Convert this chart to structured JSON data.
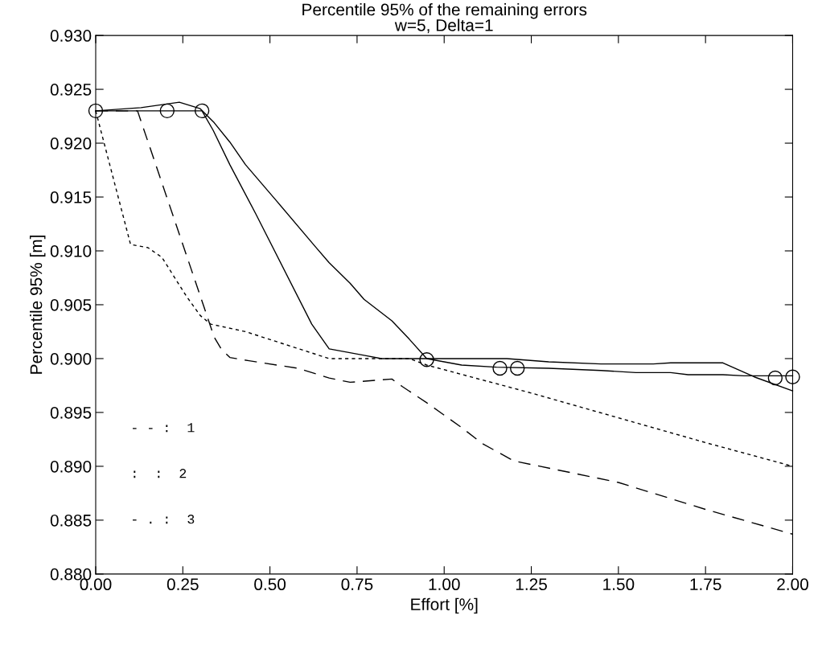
{
  "chart_data": {
    "type": "line",
    "title": "Percentile 95% of the remaining errors",
    "subtitle": "w=5, Delta=1",
    "xlabel": "Effort [%]",
    "ylabel": "Percentile 95% [m]",
    "xlim": [
      0,
      2
    ],
    "ylim": [
      0.88,
      0.93
    ],
    "xticks": [
      {
        "value": 0,
        "label": "0.00"
      },
      {
        "value": 0.25,
        "label": "0.25"
      },
      {
        "value": 0.5,
        "label": "0.50"
      },
      {
        "value": 0.75,
        "label": "0.75"
      },
      {
        "value": 1,
        "label": "1.00"
      },
      {
        "value": 1.25,
        "label": "1.25"
      },
      {
        "value": 1.5,
        "label": "1.50"
      },
      {
        "value": 1.75,
        "label": "1.75"
      },
      {
        "value": 2,
        "label": "2.00"
      }
    ],
    "yticks": [
      {
        "value": 0.88,
        "label": "0.880"
      },
      {
        "value": 0.885,
        "label": "0.885"
      },
      {
        "value": 0.89,
        "label": "0.890"
      },
      {
        "value": 0.895,
        "label": "0.895"
      },
      {
        "value": 0.9,
        "label": "0.900"
      },
      {
        "value": 0.905,
        "label": "0.905"
      },
      {
        "value": 0.91,
        "label": "0.910"
      },
      {
        "value": 0.915,
        "label": "0.915"
      },
      {
        "value": 0.92,
        "label": "0.920"
      },
      {
        "value": 0.925,
        "label": "0.925"
      },
      {
        "value": 0.93,
        "label": "0.930"
      }
    ],
    "grid": false,
    "annotations": [
      "- - :  1",
      ":  :  2",
      "- . :  3"
    ],
    "series": [
      {
        "color": "#000000",
        "line_style": "dotted",
        "x": [
          0,
          0.1,
          0.15,
          0.19,
          0.26,
          0.3,
          0.33,
          0.43,
          0.67,
          0.82,
          0.9,
          0.95,
          1.25,
          1.5,
          1.75,
          2.0
        ],
        "values": [
          0.923,
          0.9106,
          0.9103,
          0.9094,
          0.9058,
          0.904,
          0.9032,
          0.9025,
          0.9,
          0.9,
          0.9,
          0.8994,
          0.8968,
          0.8945,
          0.8922,
          0.89
        ]
      },
      {
        "color": "#000000",
        "line_style": "dashed",
        "x": [
          0,
          0.12,
          0.34,
          0.36,
          0.385,
          0.44,
          0.58,
          0.67,
          0.73,
          0.81,
          0.85,
          0.88,
          0.95,
          1.05,
          1.11,
          1.2,
          1.5,
          1.75,
          2.0
        ],
        "values": [
          0.923,
          0.923,
          0.902,
          0.9009,
          0.9001,
          0.8998,
          0.8991,
          0.8982,
          0.8978,
          0.898,
          0.8981,
          0.8974,
          0.8959,
          0.8936,
          0.8921,
          0.8905,
          0.8885,
          0.886,
          0.8837
        ]
      },
      {
        "color": "#000000",
        "line_style": "solid",
        "x": [
          0,
          0.305,
          0.337,
          0.385,
          0.46,
          0.62,
          0.67,
          0.77,
          0.82,
          0.95,
          1.18,
          1.3,
          1.45,
          1.6,
          1.65,
          1.8,
          1.89,
          2.0
        ],
        "values": [
          0.923,
          0.923,
          0.9212,
          0.918,
          0.9134,
          0.9032,
          0.9009,
          0.9003,
          0.9,
          0.9,
          0.9,
          0.8997,
          0.8995,
          0.8995,
          0.8996,
          0.8996,
          0.8983,
          0.897
        ]
      },
      {
        "color": "#000000",
        "line_style": "solid",
        "x": [
          0,
          0.13,
          0.24,
          0.3,
          0.34,
          0.385,
          0.43,
          0.52,
          0.63,
          0.67,
          0.73,
          0.77,
          0.85,
          0.9,
          0.95,
          1.0,
          1.05,
          1.15,
          1.3,
          1.45,
          1.55,
          1.65,
          1.7,
          1.8,
          1.86,
          2.0
        ],
        "values": [
          0.923,
          0.9233,
          0.9238,
          0.9232,
          0.9219,
          0.9201,
          0.918,
          0.9146,
          0.9104,
          0.9089,
          0.907,
          0.9055,
          0.9035,
          0.9018,
          0.9,
          0.8997,
          0.8994,
          0.8992,
          0.8991,
          0.8989,
          0.8987,
          0.8987,
          0.8985,
          0.8985,
          0.8984,
          0.8984
        ]
      },
      {
        "type": "scatter",
        "color": "#000000",
        "marker": "circle",
        "x": [
          0,
          0.205,
          0.305,
          0.95,
          1.16,
          1.21,
          1.95,
          2.0
        ],
        "values": [
          0.923,
          0.923,
          0.923,
          0.8999,
          0.8991,
          0.8991,
          0.8982,
          0.8983
        ]
      }
    ]
  }
}
